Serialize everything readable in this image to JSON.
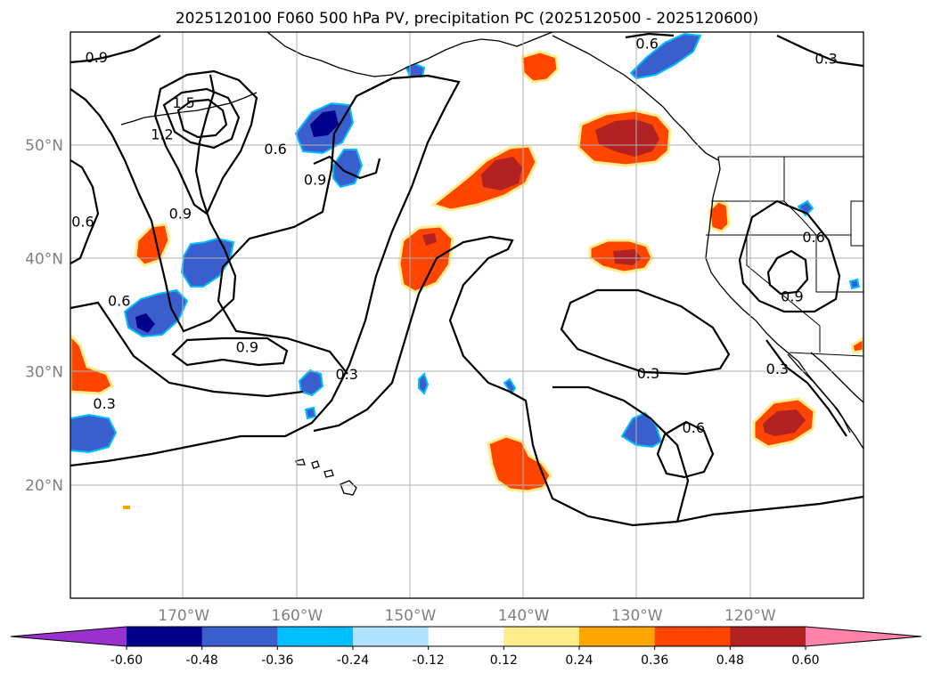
{
  "title": "2025120100 F060 500 hPa PV, precipitation PC (2025120500 - 2025120600)",
  "map": {
    "lon_range": [
      -180,
      -110
    ],
    "lat_range": [
      10,
      60
    ],
    "lat_ticks": [
      {
        "value": 20,
        "label": "20°N"
      },
      {
        "value": 30,
        "label": "30°N"
      },
      {
        "value": 40,
        "label": "40°N"
      },
      {
        "value": 50,
        "label": "50°N"
      }
    ],
    "lon_ticks": [
      {
        "value": -170,
        "label": "170°W"
      },
      {
        "value": -160,
        "label": "160°W"
      },
      {
        "value": -150,
        "label": "150°W"
      },
      {
        "value": -140,
        "label": "140°W"
      },
      {
        "value": -130,
        "label": "130°W"
      },
      {
        "value": -120,
        "label": "120°W"
      }
    ],
    "grid": true
  },
  "colorbar": {
    "boundaries": [
      "-0.60",
      "-0.48",
      "-0.36",
      "-0.24",
      "-0.12",
      "0.12",
      "0.24",
      "0.36",
      "0.48",
      "0.60"
    ],
    "colors": {
      "under": "#9932cc",
      "bins": [
        "#00008b",
        "#3a5fcd",
        "#00bfff",
        "#b0e2ff",
        "#ffffff",
        "#ffec8b",
        "#ffa500",
        "#ff4500",
        "#b22222"
      ],
      "over": "#ff82ab"
    }
  },
  "contour_labels": [
    {
      "text": "0.9",
      "lon": -177.7,
      "lat": 57.8
    },
    {
      "text": "1.5",
      "lon": -170.0,
      "lat": 53.8
    },
    {
      "text": "1.2",
      "lon": -171.9,
      "lat": 51.0
    },
    {
      "text": "0.6",
      "lon": -161.9,
      "lat": 49.7
    },
    {
      "text": "0.9",
      "lon": -158.4,
      "lat": 47.0
    },
    {
      "text": "0.9",
      "lon": -170.3,
      "lat": 44.0
    },
    {
      "text": "0.6",
      "lon": -178.9,
      "lat": 43.3
    },
    {
      "text": "0.6",
      "lon": -175.7,
      "lat": 36.3
    },
    {
      "text": "0.9",
      "lon": -164.4,
      "lat": 32.2
    },
    {
      "text": "0.3",
      "lon": -155.6,
      "lat": 29.8
    },
    {
      "text": "0.3",
      "lon": -177.0,
      "lat": 27.2
    },
    {
      "text": "0.6",
      "lon": -129.1,
      "lat": 59.0
    },
    {
      "text": "0.3",
      "lon": -113.3,
      "lat": 57.7
    },
    {
      "text": "0.6",
      "lon": -114.4,
      "lat": 41.9
    },
    {
      "text": "0.9",
      "lon": -116.3,
      "lat": 36.7
    },
    {
      "text": "0.3",
      "lon": -129.0,
      "lat": 29.9
    },
    {
      "text": "0.3",
      "lon": -117.6,
      "lat": 30.3
    },
    {
      "text": "0.6",
      "lon": -125.0,
      "lat": 25.1
    }
  ]
}
